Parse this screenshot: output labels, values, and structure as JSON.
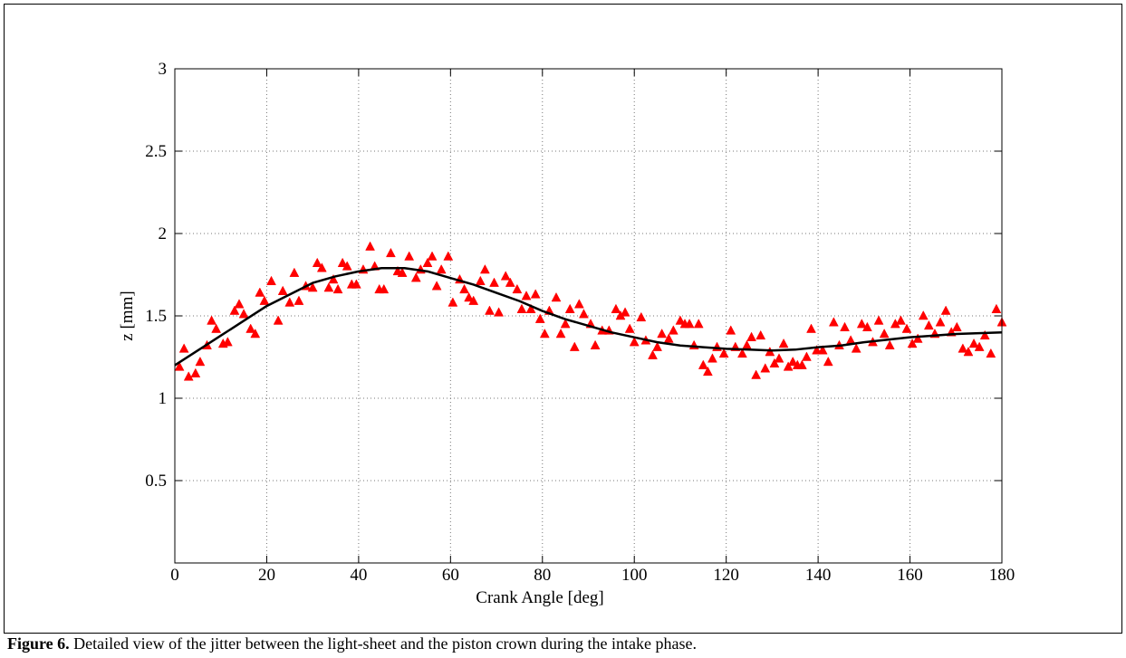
{
  "chart_data": {
    "type": "scatter",
    "xlabel": "Crank Angle [deg]",
    "ylabel": "z [mm]",
    "xlim": [
      0,
      180
    ],
    "xticks": [
      0,
      20,
      40,
      60,
      80,
      100,
      120,
      140,
      160,
      180
    ],
    "ylim": [
      0,
      3
    ],
    "yticks": [
      0.5,
      1,
      1.5,
      2,
      2.5,
      3
    ],
    "grid": true,
    "series": [
      {
        "type": "scatter",
        "marker": "triangle",
        "color": "#ff0000",
        "x": [
          1,
          2,
          3,
          4.5,
          5.5,
          7,
          8,
          9,
          10.5,
          11.5,
          13,
          14,
          15,
          16.5,
          17.5,
          18.5,
          19.5,
          21,
          22.5,
          23.5,
          25,
          26,
          27,
          28.5,
          30,
          31,
          32,
          33.5,
          34.5,
          35.5,
          36.5,
          37.5,
          38.5,
          39.5,
          41,
          42.5,
          43.5,
          44.5,
          45.5,
          47,
          48.5,
          49.5,
          51,
          52.5,
          53.5,
          55,
          56,
          57,
          58,
          59.5,
          60.5,
          62,
          63,
          64,
          65,
          66.5,
          67.5,
          68.5,
          69.5,
          70.5,
          72,
          73,
          74.5,
          75.5,
          76.5,
          77.5,
          78.5,
          79.5,
          80.5,
          81.5,
          83,
          84,
          85,
          86,
          87,
          88,
          89,
          90.5,
          91.5,
          93,
          94.5,
          96,
          97,
          98,
          99,
          100,
          101.5,
          102.5,
          104,
          105,
          106,
          107.5,
          108.5,
          110,
          111,
          112,
          113,
          114,
          115,
          116,
          117,
          118,
          119.5,
          121,
          122,
          123.5,
          124.5,
          125.5,
          126.5,
          127.5,
          128.5,
          129.5,
          130.5,
          131.5,
          132.5,
          133.5,
          134.5,
          135.5,
          136.5,
          137.5,
          138.5,
          139.7,
          141,
          142.2,
          143.4,
          144.6,
          145.8,
          147.1,
          148.3,
          149.5,
          150.7,
          151.9,
          153.2,
          154.4,
          155.6,
          156.8,
          158,
          159.3,
          160.5,
          161.7,
          162.9,
          164.1,
          165.4,
          166.6,
          167.8,
          169,
          170.2,
          171.5,
          172.7,
          173.9,
          175.1,
          176.3,
          177.6,
          178.8,
          180
        ],
        "values": [
          1.19,
          1.3,
          1.13,
          1.15,
          1.22,
          1.32,
          1.47,
          1.42,
          1.33,
          1.34,
          1.53,
          1.57,
          1.51,
          1.42,
          1.39,
          1.64,
          1.59,
          1.71,
          1.47,
          1.65,
          1.58,
          1.76,
          1.59,
          1.68,
          1.67,
          1.82,
          1.79,
          1.67,
          1.72,
          1.66,
          1.82,
          1.8,
          1.69,
          1.69,
          1.78,
          1.92,
          1.8,
          1.66,
          1.66,
          1.88,
          1.77,
          1.76,
          1.86,
          1.73,
          1.78,
          1.82,
          1.86,
          1.68,
          1.78,
          1.86,
          1.58,
          1.72,
          1.66,
          1.61,
          1.59,
          1.71,
          1.78,
          1.53,
          1.7,
          1.52,
          1.74,
          1.7,
          1.66,
          1.54,
          1.62,
          1.54,
          1.63,
          1.48,
          1.39,
          1.53,
          1.61,
          1.39,
          1.45,
          1.54,
          1.31,
          1.57,
          1.51,
          1.45,
          1.32,
          1.41,
          1.41,
          1.54,
          1.5,
          1.52,
          1.42,
          1.34,
          1.49,
          1.35,
          1.26,
          1.31,
          1.39,
          1.36,
          1.41,
          1.47,
          1.45,
          1.45,
          1.32,
          1.45,
          1.2,
          1.16,
          1.24,
          1.31,
          1.27,
          1.41,
          1.31,
          1.27,
          1.32,
          1.37,
          1.14,
          1.38,
          1.18,
          1.28,
          1.21,
          1.24,
          1.33,
          1.19,
          1.22,
          1.2,
          1.2,
          1.25,
          1.42,
          1.29,
          1.29,
          1.22,
          1.46,
          1.32,
          1.43,
          1.35,
          1.3,
          1.45,
          1.43,
          1.34,
          1.47,
          1.39,
          1.32,
          1.45,
          1.47,
          1.42,
          1.33,
          1.36,
          1.5,
          1.44,
          1.39,
          1.46,
          1.53,
          1.4,
          1.43,
          1.3,
          1.28,
          1.33,
          1.31,
          1.38,
          1.27,
          1.54,
          1.46
        ]
      },
      {
        "type": "line",
        "color": "#000000",
        "x": [
          0,
          5,
          10,
          15,
          20,
          25,
          30,
          35,
          40,
          45,
          50,
          55,
          60,
          65,
          70,
          75,
          80,
          85,
          90,
          95,
          100,
          105,
          110,
          115,
          120,
          125,
          130,
          135,
          140,
          145,
          150,
          155,
          160,
          165,
          170,
          175,
          180
        ],
        "values": [
          1.2,
          1.29,
          1.38,
          1.47,
          1.56,
          1.63,
          1.7,
          1.74,
          1.77,
          1.79,
          1.79,
          1.77,
          1.73,
          1.69,
          1.64,
          1.59,
          1.53,
          1.48,
          1.44,
          1.4,
          1.37,
          1.34,
          1.32,
          1.31,
          1.3,
          1.295,
          1.29,
          1.295,
          1.31,
          1.32,
          1.34,
          1.355,
          1.37,
          1.38,
          1.39,
          1.395,
          1.4
        ]
      }
    ]
  },
  "caption": {
    "label": "Figure 6.",
    "text": " Detailed view of the jitter between the light-sheet and the piston crown during the intake phase."
  }
}
